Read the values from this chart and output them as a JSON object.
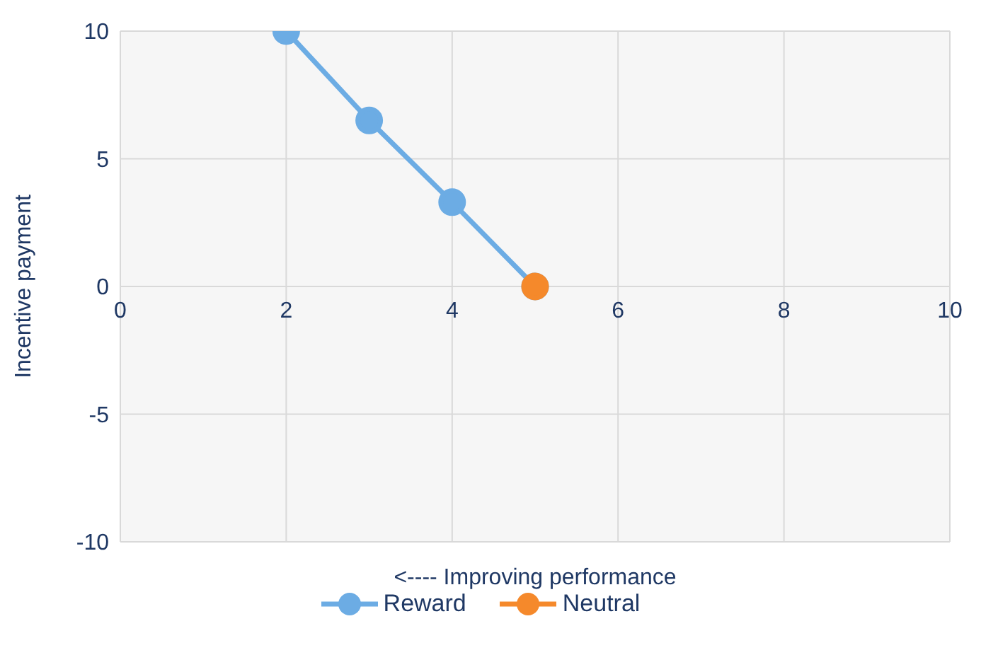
{
  "chart_data": {
    "type": "line",
    "xlabel": "<---- Improving performance",
    "ylabel": "Incentive payment",
    "series": [
      {
        "name": "Reward",
        "color": "#6cace4",
        "x": [
          2,
          3,
          4,
          5
        ],
        "values": [
          10,
          6.5,
          3.3,
          0
        ]
      },
      {
        "name": "Neutral",
        "color": "#f5892b",
        "x": [
          5
        ],
        "values": [
          0
        ]
      }
    ],
    "xlim": [
      0,
      10
    ],
    "xticks": [
      0,
      2,
      4,
      6,
      8,
      10
    ],
    "ylim": [
      -10,
      10
    ],
    "yticks": [
      -10,
      -5,
      0,
      5,
      10
    ],
    "grid": true,
    "legend": "bottom",
    "marker": "circle",
    "line_style": "solid"
  }
}
